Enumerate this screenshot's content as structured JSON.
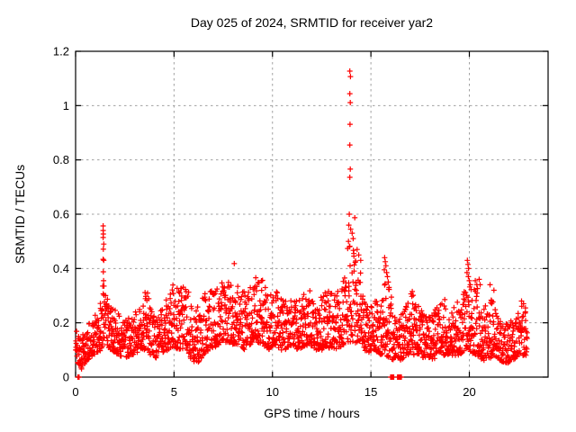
{
  "chart_data": {
    "type": "scatter",
    "title": "Day 025 of 2024, SRMTID for receiver yar2",
    "xlabel": "GPS time / hours",
    "ylabel": "SRMTID / TECUs",
    "xlim": [
      0,
      24
    ],
    "ylim": [
      0,
      1.2
    ],
    "xticks": [
      {
        "v": 0,
        "label": "0"
      },
      {
        "v": 5,
        "label": "5"
      },
      {
        "v": 10,
        "label": "10"
      },
      {
        "v": 15,
        "label": "15"
      },
      {
        "v": 20,
        "label": "20"
      }
    ],
    "yticks": [
      {
        "v": 0,
        "label": "0"
      },
      {
        "v": 0.2,
        "label": "0.2"
      },
      {
        "v": 0.4,
        "label": "0.4"
      },
      {
        "v": 0.6,
        "label": "0.6"
      },
      {
        "v": 0.8,
        "label": "0.8"
      },
      {
        "v": 1,
        "label": "1"
      },
      {
        "v": 1.2,
        "label": "1.2"
      }
    ],
    "grid": true,
    "legend": "none",
    "marker": "plus",
    "marker_color": "#ff0000",
    "grid_color": "#a0a0a0",
    "border_color": "#000000",
    "series_name": "SRMTID",
    "data_start_hour": 0.0,
    "data_end_hour": 22.95,
    "baseline_envelope": [
      [
        0.0,
        0.06,
        0.2
      ],
      [
        0.15,
        0.05,
        0.18
      ],
      [
        0.3,
        0.03,
        0.15
      ],
      [
        0.5,
        0.05,
        0.17
      ],
      [
        0.7,
        0.07,
        0.2
      ],
      [
        0.9,
        0.08,
        0.22
      ],
      [
        1.1,
        0.09,
        0.24
      ],
      [
        1.3,
        0.1,
        0.3
      ],
      [
        1.45,
        0.12,
        0.32
      ],
      [
        1.6,
        0.11,
        0.3
      ],
      [
        1.8,
        0.1,
        0.28
      ],
      [
        2.0,
        0.09,
        0.26
      ],
      [
        2.2,
        0.08,
        0.23
      ],
      [
        2.5,
        0.07,
        0.21
      ],
      [
        2.8,
        0.08,
        0.23
      ],
      [
        3.1,
        0.09,
        0.26
      ],
      [
        3.4,
        0.1,
        0.3
      ],
      [
        3.6,
        0.1,
        0.33
      ],
      [
        3.8,
        0.08,
        0.26
      ],
      [
        4.1,
        0.07,
        0.22
      ],
      [
        4.4,
        0.09,
        0.26
      ],
      [
        4.7,
        0.1,
        0.3
      ],
      [
        5.0,
        0.11,
        0.35
      ],
      [
        5.3,
        0.1,
        0.32
      ],
      [
        5.6,
        0.11,
        0.36
      ],
      [
        5.9,
        0.06,
        0.28
      ],
      [
        6.2,
        0.05,
        0.26
      ],
      [
        6.5,
        0.08,
        0.3
      ],
      [
        6.8,
        0.1,
        0.33
      ],
      [
        7.1,
        0.11,
        0.33
      ],
      [
        7.4,
        0.12,
        0.35
      ],
      [
        7.7,
        0.13,
        0.36
      ],
      [
        8.0,
        0.12,
        0.33
      ],
      [
        8.3,
        0.12,
        0.36
      ],
      [
        8.6,
        0.1,
        0.32
      ],
      [
        8.9,
        0.12,
        0.34
      ],
      [
        9.2,
        0.13,
        0.38
      ],
      [
        9.5,
        0.12,
        0.36
      ],
      [
        9.8,
        0.1,
        0.3
      ],
      [
        10.1,
        0.12,
        0.33
      ],
      [
        10.4,
        0.1,
        0.3
      ],
      [
        10.7,
        0.1,
        0.28
      ],
      [
        11.0,
        0.12,
        0.3
      ],
      [
        11.3,
        0.1,
        0.28
      ],
      [
        11.6,
        0.11,
        0.31
      ],
      [
        11.9,
        0.12,
        0.32
      ],
      [
        12.2,
        0.1,
        0.28
      ],
      [
        12.5,
        0.1,
        0.3
      ],
      [
        12.8,
        0.11,
        0.33
      ],
      [
        13.1,
        0.1,
        0.3
      ],
      [
        13.4,
        0.11,
        0.33
      ],
      [
        13.65,
        0.12,
        0.38
      ],
      [
        13.85,
        0.13,
        0.52
      ],
      [
        14.0,
        0.13,
        0.5
      ],
      [
        14.2,
        0.12,
        0.47
      ],
      [
        14.45,
        0.12,
        0.44
      ],
      [
        14.6,
        0.1,
        0.3
      ],
      [
        14.9,
        0.09,
        0.28
      ],
      [
        15.2,
        0.1,
        0.3
      ],
      [
        15.5,
        0.08,
        0.26
      ],
      [
        15.75,
        0.08,
        0.38
      ],
      [
        15.95,
        0.07,
        0.34
      ],
      [
        16.2,
        0.06,
        0.24
      ],
      [
        16.5,
        0.06,
        0.22
      ],
      [
        16.8,
        0.08,
        0.3
      ],
      [
        17.05,
        0.08,
        0.34
      ],
      [
        17.3,
        0.08,
        0.3
      ],
      [
        17.6,
        0.07,
        0.24
      ],
      [
        17.9,
        0.07,
        0.22
      ],
      [
        18.2,
        0.06,
        0.24
      ],
      [
        18.5,
        0.08,
        0.28
      ],
      [
        18.8,
        0.08,
        0.29
      ],
      [
        19.1,
        0.08,
        0.26
      ],
      [
        19.4,
        0.08,
        0.28
      ],
      [
        19.7,
        0.09,
        0.31
      ],
      [
        19.9,
        0.1,
        0.38
      ],
      [
        20.1,
        0.09,
        0.34
      ],
      [
        20.4,
        0.08,
        0.34
      ],
      [
        20.7,
        0.06,
        0.25
      ],
      [
        21.0,
        0.07,
        0.29
      ],
      [
        21.3,
        0.07,
        0.29
      ],
      [
        21.6,
        0.06,
        0.22
      ],
      [
        21.9,
        0.05,
        0.2
      ],
      [
        22.2,
        0.06,
        0.21
      ],
      [
        22.5,
        0.08,
        0.25
      ],
      [
        22.7,
        0.08,
        0.27
      ],
      [
        22.95,
        0.08,
        0.23
      ]
    ],
    "outlier_points": [
      [
        1.4,
        0.557
      ],
      [
        1.4,
        0.54
      ],
      [
        1.41,
        0.527
      ],
      [
        1.4,
        0.514
      ],
      [
        1.43,
        0.49
      ],
      [
        1.41,
        0.471
      ],
      [
        1.4,
        0.434
      ],
      [
        1.43,
        0.43
      ],
      [
        1.41,
        0.388
      ],
      [
        1.42,
        0.355
      ],
      [
        1.38,
        0.335
      ],
      [
        1.44,
        0.335
      ],
      [
        8.06,
        0.418
      ],
      [
        13.93,
        1.127
      ],
      [
        13.96,
        1.107
      ],
      [
        13.93,
        1.044
      ],
      [
        13.95,
        1.011
      ],
      [
        13.94,
        0.931
      ],
      [
        13.93,
        0.855
      ],
      [
        13.95,
        0.766
      ],
      [
        13.93,
        0.736
      ],
      [
        13.9,
        0.6
      ],
      [
        14.18,
        0.587
      ],
      [
        13.88,
        0.56
      ],
      [
        13.97,
        0.545
      ],
      [
        14.05,
        0.53
      ],
      [
        13.86,
        0.5
      ],
      [
        14.1,
        0.51
      ],
      [
        13.91,
        0.48
      ],
      [
        14.3,
        0.47
      ],
      [
        14.38,
        0.45
      ],
      [
        14.48,
        0.43
      ],
      [
        15.7,
        0.44
      ],
      [
        15.73,
        0.425
      ],
      [
        15.76,
        0.41
      ],
      [
        15.68,
        0.395
      ],
      [
        15.8,
        0.385
      ],
      [
        15.84,
        0.37
      ],
      [
        15.88,
        0.35
      ],
      [
        15.92,
        0.33
      ],
      [
        19.9,
        0.43
      ],
      [
        19.93,
        0.415
      ],
      [
        19.96,
        0.4
      ],
      [
        19.88,
        0.385
      ],
      [
        19.95,
        0.37
      ],
      [
        20.0,
        0.355
      ],
      [
        20.05,
        0.34
      ],
      [
        20.3,
        0.355
      ],
      [
        20.38,
        0.34
      ],
      [
        20.5,
        0.36
      ],
      [
        20.55,
        0.34
      ],
      [
        21.05,
        0.34
      ],
      [
        21.25,
        0.32
      ],
      [
        22.65,
        0.28
      ],
      [
        22.75,
        0.27
      ],
      [
        22.85,
        0.255
      ]
    ],
    "zero_points": [
      [
        0.12,
        0
      ],
      [
        0.18,
        0
      ],
      [
        16.0,
        0
      ],
      [
        16.04,
        0
      ],
      [
        16.08,
        0
      ],
      [
        16.12,
        0
      ],
      [
        16.16,
        0
      ],
      [
        16.35,
        0
      ],
      [
        16.4,
        0
      ],
      [
        16.45,
        0
      ],
      [
        16.5,
        0
      ],
      [
        16.55,
        0
      ]
    ],
    "render_hints": {
      "sample_count": 2300,
      "seed": 42,
      "bias_power": 1.55,
      "marker_size_px": 7
    }
  }
}
